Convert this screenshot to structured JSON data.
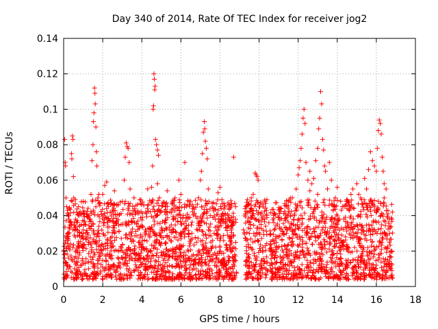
{
  "chart_data": {
    "type": "scatter",
    "title": "Day 340 of 2014, Rate Of TEC Index for receiver jog2",
    "xlabel": "GPS time / hours",
    "ylabel": "ROTI / TECUs",
    "xlim": [
      0,
      18
    ],
    "ylim": [
      0,
      0.14
    ],
    "xticks": [
      0,
      2,
      4,
      6,
      8,
      10,
      12,
      14,
      16,
      18
    ],
    "xtick_labels": [
      "0",
      "2",
      "4",
      "6",
      "8",
      "10",
      "12",
      "14",
      "16",
      "18"
    ],
    "yticks": [
      0,
      0.02,
      0.04,
      0.06,
      0.08,
      0.1,
      0.12,
      0.14
    ],
    "ytick_labels": [
      "0",
      "0.02",
      "0.04",
      "0.06",
      "0.08",
      "0.1",
      "0.12",
      "0.14"
    ],
    "grid": true,
    "marker": "plus",
    "color": "#ff0000",
    "series": [
      {
        "name": "ROTI",
        "points": [
          [
            0.02,
            0.018
          ],
          [
            0.05,
            0.083
          ],
          [
            0.08,
            0.07
          ],
          [
            0.1,
            0.068
          ],
          [
            0.12,
            0.05
          ],
          [
            0.15,
            0.045
          ],
          [
            0.2,
            0.03
          ],
          [
            0.25,
            0.016
          ],
          [
            0.3,
            0.011
          ],
          [
            0.35,
            0.024
          ],
          [
            0.4,
            0.075
          ],
          [
            0.42,
            0.072
          ],
          [
            0.45,
            0.085
          ],
          [
            0.48,
            0.083
          ],
          [
            0.5,
            0.062
          ],
          [
            0.52,
            0.05
          ],
          [
            0.55,
            0.036
          ],
          [
            0.6,
            0.028
          ],
          [
            0.65,
            0.014
          ],
          [
            0.7,
            0.019
          ],
          [
            0.8,
            0.022
          ],
          [
            0.9,
            0.035
          ],
          [
            1.0,
            0.027
          ],
          [
            1.1,
            0.013
          ],
          [
            1.2,
            0.041
          ],
          [
            1.3,
            0.025
          ],
          [
            1.4,
            0.052
          ],
          [
            1.45,
            0.071
          ],
          [
            1.5,
            0.08
          ],
          [
            1.52,
            0.093
          ],
          [
            1.55,
            0.098
          ],
          [
            1.58,
            0.112
          ],
          [
            1.6,
            0.109
          ],
          [
            1.62,
            0.103
          ],
          [
            1.65,
            0.09
          ],
          [
            1.68,
            0.076
          ],
          [
            1.7,
            0.068
          ],
          [
            1.75,
            0.05
          ],
          [
            1.8,
            0.034
          ],
          [
            1.9,
            0.021
          ],
          [
            2.0,
            0.052
          ],
          [
            2.1,
            0.057
          ],
          [
            2.2,
            0.059
          ],
          [
            2.3,
            0.038
          ],
          [
            2.4,
            0.024
          ],
          [
            2.6,
            0.03
          ],
          [
            2.8,
            0.046
          ],
          [
            3.0,
            0.02
          ],
          [
            3.1,
            0.06
          ],
          [
            3.15,
            0.073
          ],
          [
            3.2,
            0.081
          ],
          [
            3.25,
            0.079
          ],
          [
            3.3,
            0.078
          ],
          [
            3.35,
            0.07
          ],
          [
            3.4,
            0.055
          ],
          [
            3.5,
            0.036
          ],
          [
            3.7,
            0.018
          ],
          [
            3.9,
            0.049
          ],
          [
            4.0,
            0.024
          ],
          [
            4.2,
            0.042
          ],
          [
            4.3,
            0.055
          ],
          [
            4.4,
            0.033
          ],
          [
            4.5,
            0.056
          ],
          [
            4.55,
            0.068
          ],
          [
            4.58,
            0.1
          ],
          [
            4.6,
            0.102
          ],
          [
            4.62,
            0.12
          ],
          [
            4.64,
            0.117
          ],
          [
            4.66,
            0.111
          ],
          [
            4.68,
            0.113
          ],
          [
            4.7,
            0.083
          ],
          [
            4.75,
            0.08
          ],
          [
            4.8,
            0.077
          ],
          [
            4.85,
            0.074
          ],
          [
            4.9,
            0.05
          ],
          [
            5.0,
            0.032
          ],
          [
            5.2,
            0.045
          ],
          [
            5.4,
            0.028
          ],
          [
            5.6,
            0.044
          ],
          [
            5.8,
            0.022
          ],
          [
            5.9,
            0.06
          ],
          [
            6.0,
            0.052
          ],
          [
            6.2,
            0.07
          ],
          [
            6.4,
            0.03
          ],
          [
            6.6,
            0.044
          ],
          [
            6.8,
            0.025
          ],
          [
            7.0,
            0.06
          ],
          [
            7.05,
            0.065
          ],
          [
            7.1,
            0.075
          ],
          [
            7.15,
            0.087
          ],
          [
            7.2,
            0.093
          ],
          [
            7.22,
            0.089
          ],
          [
            7.25,
            0.082
          ],
          [
            7.3,
            0.078
          ],
          [
            7.35,
            0.072
          ],
          [
            7.4,
            0.055
          ],
          [
            7.5,
            0.04
          ],
          [
            7.7,
            0.03
          ],
          [
            7.9,
            0.053
          ],
          [
            8.0,
            0.056
          ],
          [
            8.1,
            0.049
          ],
          [
            8.3,
            0.038
          ],
          [
            8.5,
            0.027
          ],
          [
            8.6,
            0.036
          ],
          [
            8.7,
            0.073
          ],
          [
            8.75,
            0.018
          ],
          [
            9.2,
            0.032
          ],
          [
            9.3,
            0.041
          ],
          [
            9.4,
            0.037
          ],
          [
            9.5,
            0.03
          ],
          [
            9.6,
            0.05
          ],
          [
            9.7,
            0.052
          ],
          [
            9.8,
            0.064
          ],
          [
            9.85,
            0.063
          ],
          [
            9.9,
            0.062
          ],
          [
            9.95,
            0.06
          ],
          [
            10.0,
            0.045
          ],
          [
            10.1,
            0.035
          ],
          [
            10.2,
            0.045
          ],
          [
            10.3,
            0.048
          ],
          [
            10.4,
            0.049
          ],
          [
            10.5,
            0.036
          ],
          [
            10.6,
            0.024
          ],
          [
            10.8,
            0.016
          ],
          [
            11.0,
            0.028
          ],
          [
            11.2,
            0.03
          ],
          [
            11.4,
            0.046
          ],
          [
            11.6,
            0.05
          ],
          [
            11.8,
            0.04
          ],
          [
            11.9,
            0.055
          ],
          [
            12.0,
            0.063
          ],
          [
            12.05,
            0.067
          ],
          [
            12.1,
            0.071
          ],
          [
            12.15,
            0.078
          ],
          [
            12.2,
            0.086
          ],
          [
            12.25,
            0.095
          ],
          [
            12.3,
            0.1
          ],
          [
            12.35,
            0.092
          ],
          [
            12.4,
            0.07
          ],
          [
            12.5,
            0.06
          ],
          [
            12.6,
            0.065
          ],
          [
            12.7,
            0.058
          ],
          [
            12.8,
            0.061
          ],
          [
            12.9,
            0.071
          ],
          [
            13.0,
            0.078
          ],
          [
            13.05,
            0.089
          ],
          [
            13.1,
            0.095
          ],
          [
            13.15,
            0.11
          ],
          [
            13.2,
            0.103
          ],
          [
            13.25,
            0.083
          ],
          [
            13.3,
            0.077
          ],
          [
            13.35,
            0.068
          ],
          [
            13.4,
            0.065
          ],
          [
            13.5,
            0.055
          ],
          [
            13.6,
            0.07
          ],
          [
            13.7,
            0.06
          ],
          [
            13.8,
            0.045
          ],
          [
            14.0,
            0.056
          ],
          [
            14.1,
            0.038
          ],
          [
            14.3,
            0.025
          ],
          [
            14.5,
            0.044
          ],
          [
            14.7,
            0.052
          ],
          [
            14.8,
            0.055
          ],
          [
            15.0,
            0.058
          ],
          [
            15.2,
            0.05
          ],
          [
            15.4,
            0.061
          ],
          [
            15.6,
            0.066
          ],
          [
            15.7,
            0.076
          ],
          [
            15.8,
            0.071
          ],
          [
            15.9,
            0.068
          ],
          [
            16.0,
            0.065
          ],
          [
            16.05,
            0.078
          ],
          [
            16.1,
            0.088
          ],
          [
            16.15,
            0.094
          ],
          [
            16.2,
            0.092
          ],
          [
            16.25,
            0.086
          ],
          [
            16.3,
            0.073
          ],
          [
            16.35,
            0.065
          ],
          [
            16.4,
            0.058
          ],
          [
            16.5,
            0.055
          ],
          [
            16.6,
            0.041
          ],
          [
            16.7,
            0.033
          ],
          [
            16.75,
            0.02
          ],
          [
            16.8,
            0.009
          ],
          [
            0.2,
            0.043
          ],
          [
            0.6,
            0.049
          ],
          [
            1.0,
            0.048
          ],
          [
            1.3,
            0.04
          ],
          [
            1.8,
            0.052
          ],
          [
            2.2,
            0.044
          ],
          [
            2.6,
            0.054
          ],
          [
            3.0,
            0.048
          ],
          [
            3.6,
            0.05
          ],
          [
            4.1,
            0.046
          ],
          [
            4.8,
            0.058
          ],
          [
            5.3,
            0.054
          ],
          [
            5.7,
            0.05
          ],
          [
            6.5,
            0.048
          ],
          [
            6.9,
            0.05
          ],
          [
            7.6,
            0.047
          ],
          [
            8.2,
            0.047
          ],
          [
            8.8,
            0.045
          ],
          [
            9.4,
            0.049
          ],
          [
            10.2,
            0.046
          ],
          [
            11.1,
            0.044
          ],
          [
            11.7,
            0.05
          ],
          [
            12.6,
            0.054
          ],
          [
            13.0,
            0.052
          ],
          [
            13.9,
            0.05
          ],
          [
            14.6,
            0.048
          ],
          [
            15.1,
            0.052
          ],
          [
            15.5,
            0.055
          ],
          [
            16.4,
            0.05
          ]
        ]
      }
    ]
  }
}
